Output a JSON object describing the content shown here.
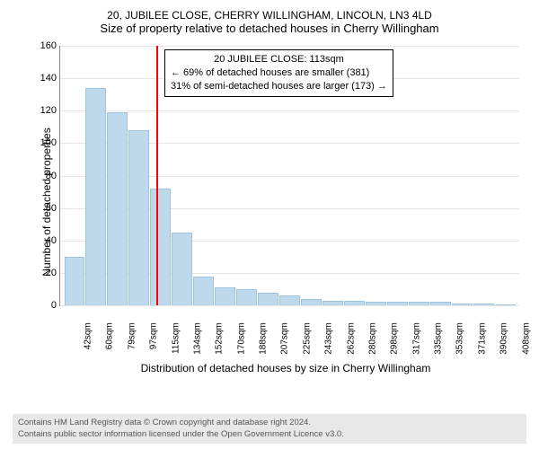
{
  "titles": {
    "line1": "20, JUBILEE CLOSE, CHERRY WILLINGHAM, LINCOLN, LN3 4LD",
    "line2": "Size of property relative to detached houses in Cherry Willingham"
  },
  "chart": {
    "type": "histogram",
    "ylabel": "Number of detached properties",
    "xlabel": "Distribution of detached houses by size in Cherry Willingham",
    "ylim": [
      0,
      160
    ],
    "ytick_step": 20,
    "yticks": [
      0,
      20,
      40,
      60,
      80,
      100,
      120,
      140,
      160
    ],
    "categories": [
      "42sqm",
      "60sqm",
      "79sqm",
      "97sqm",
      "115sqm",
      "134sqm",
      "152sqm",
      "170sqm",
      "188sqm",
      "207sqm",
      "225sqm",
      "243sqm",
      "262sqm",
      "280sqm",
      "298sqm",
      "317sqm",
      "335sqm",
      "353sqm",
      "371sqm",
      "390sqm",
      "408sqm"
    ],
    "values": [
      30,
      134,
      119,
      108,
      72,
      45,
      18,
      11,
      10,
      8,
      6,
      4,
      3,
      3,
      2,
      2,
      2,
      2,
      1,
      1,
      0
    ],
    "bar_color": "#bfd9ec",
    "bar_border_color": "#9fc4e0",
    "grid_color": "#e6e6e6",
    "background_color": "#ffffff",
    "reference_line": {
      "index": 3.9,
      "color": "#ff0000"
    },
    "annotation": {
      "line1": "20 JUBILEE CLOSE: 113sqm",
      "line2": "← 69% of detached houses are smaller (381)",
      "line3": "31% of semi-detached houses are larger (173) →"
    },
    "label_fontsize": 12,
    "tick_fontsize": 11,
    "annotation_fontsize": 11
  },
  "footer": {
    "line1": "Contains HM Land Registry data © Crown copyright and database right 2024.",
    "line2": "Contains public sector information licensed under the Open Government Licence v3.0."
  }
}
